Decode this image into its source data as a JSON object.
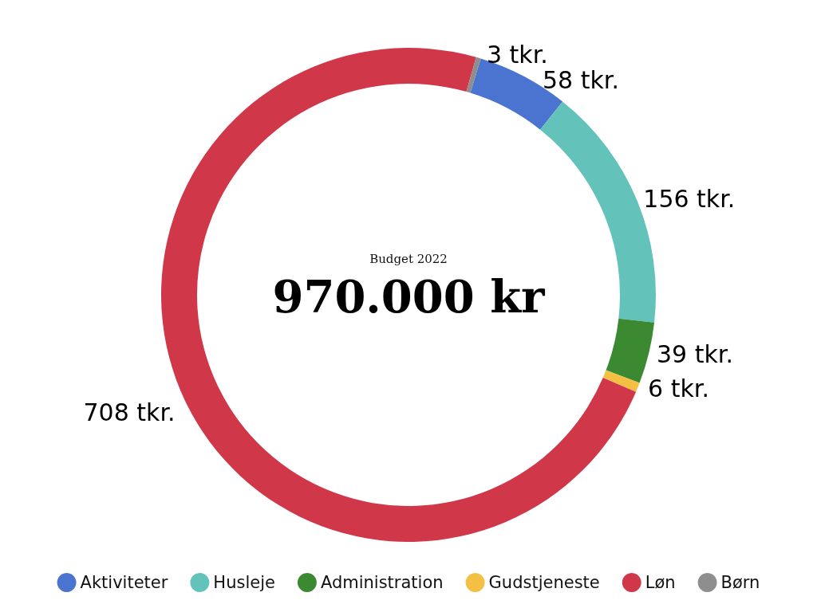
{
  "chart_data": {
    "type": "donut",
    "title": "Budget 2022",
    "subtitle": "970.000 kr",
    "categories": [
      "Aktiviteter",
      "Husleje",
      "Administration",
      "Gudstjeneste",
      "Løn",
      "Børn"
    ],
    "values": [
      58,
      156,
      39,
      6,
      708,
      3
    ],
    "value_labels": [
      "58 tkr.",
      "156 tkr.",
      "39 tkr.",
      "6 tkr.",
      "708 tkr.",
      "3 tkr."
    ],
    "colors": [
      "#4a74cf",
      "#63c3bb",
      "#3b8a32",
      "#f4c043",
      "#d0384a",
      "#8e8e8e"
    ],
    "legend": "bottom"
  }
}
